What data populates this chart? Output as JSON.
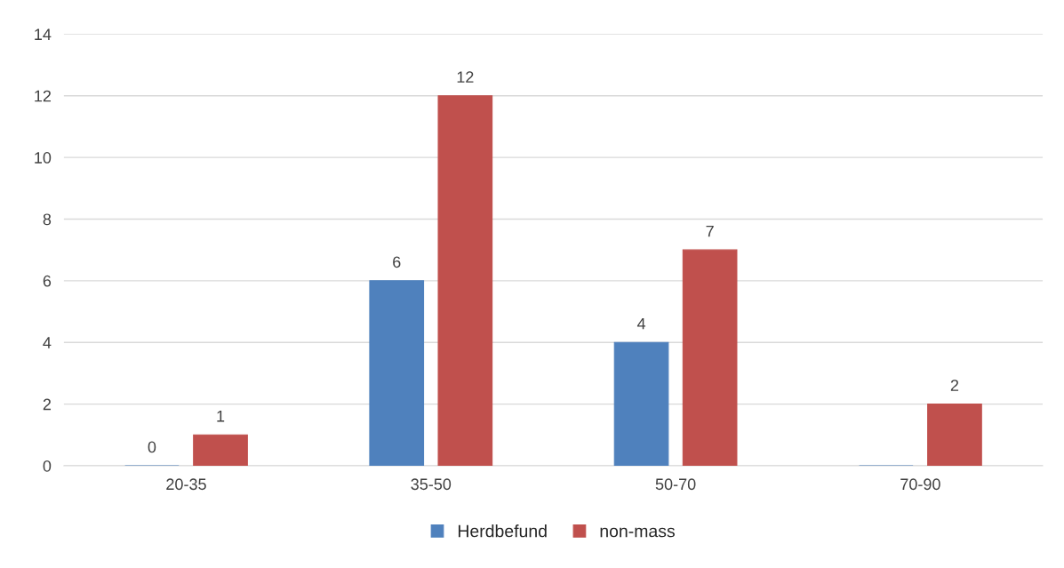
{
  "chart_data": {
    "type": "bar",
    "categories": [
      "20-35",
      "35-50",
      "50-70",
      "70-90"
    ],
    "series": [
      {
        "name": "Herdbefund",
        "color": "#4f81bd",
        "values": [
          0,
          6,
          4,
          0
        ],
        "value_labels": [
          "0",
          "6",
          "4",
          null
        ]
      },
      {
        "name": "non-mass",
        "color": "#c0504d",
        "values": [
          1,
          12,
          7,
          2
        ],
        "value_labels": [
          "1",
          "12",
          "7",
          "2"
        ]
      }
    ],
    "ylim": [
      0,
      14
    ],
    "yticks": [
      0,
      2,
      4,
      6,
      8,
      10,
      12,
      14
    ],
    "grid": "y",
    "legend": "bottom"
  }
}
